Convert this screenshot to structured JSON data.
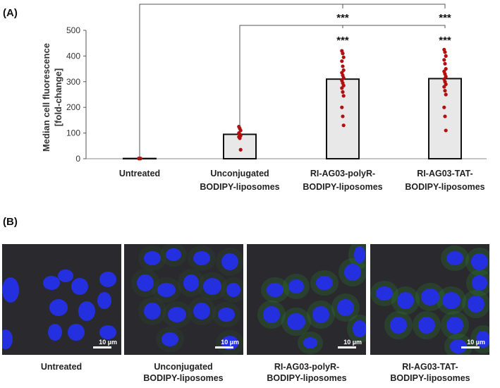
{
  "panel_a": {
    "label": "(A)"
  },
  "panel_b": {
    "label": "(B)"
  },
  "chart_data": {
    "type": "bar",
    "title": "",
    "ylabel": "Median cell fluorescence\n[fold-change]",
    "xlabel": "",
    "ylim": [
      0,
      500
    ],
    "yticks": [
      0,
      100,
      200,
      300,
      400,
      500
    ],
    "categories": [
      "Untreated",
      "Unconjugated\nBODIPY-liposomes",
      "RI-AG03-polyR-\nBODIPY-liposomes",
      "RI-AG03-TAT-\nBODIPY-liposomes"
    ],
    "values": [
      1,
      95,
      310,
      312
    ],
    "error": [
      0.5,
      12,
      30,
      32
    ],
    "points": [
      [
        1,
        1,
        1
      ],
      [
        125,
        118,
        110,
        100,
        95,
        90,
        85,
        80,
        35
      ],
      [
        420,
        410,
        395,
        380,
        360,
        345,
        335,
        325,
        315,
        305,
        295,
        285,
        275,
        260,
        245,
        200,
        165,
        130
      ],
      [
        425,
        415,
        400,
        385,
        370,
        350,
        340,
        330,
        320,
        310,
        300,
        290,
        280,
        265,
        250,
        200,
        165,
        110
      ]
    ],
    "bar_color": "#e8e8e8",
    "point_color": "#b01010",
    "grid": false,
    "significance": [
      {
        "from": 2,
        "to": 3,
        "label": "***"
      },
      {
        "from": 2,
        "to": 3,
        "label": "***"
      },
      {
        "from": 1,
        "to": 3,
        "label": "***"
      },
      {
        "from": 1,
        "to": 3,
        "label": "***"
      }
    ]
  },
  "micrographs": [
    {
      "caption": "Untreated",
      "scale": "10 µm",
      "green": 0.0
    },
    {
      "caption": "Unconjugated\nBODIPY-liposomes",
      "scale": "10 µm",
      "green": 0.25
    },
    {
      "caption": "RI-AG03-polyR-\nBODIPY-liposomes",
      "scale": "10 µm",
      "green": 0.7
    },
    {
      "caption": "RI-AG03-TAT-\nBODIPY-liposomes",
      "scale": "10 µm",
      "green": 0.7
    }
  ]
}
